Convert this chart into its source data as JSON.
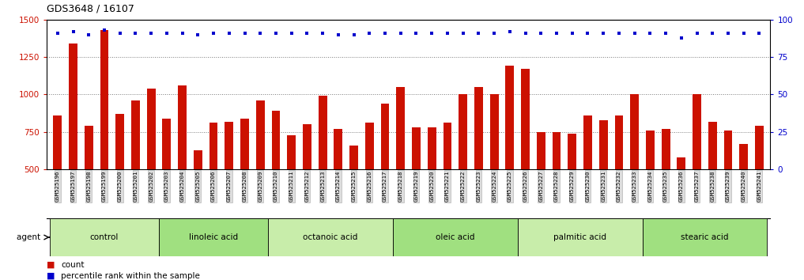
{
  "title": "GDS3648 / 16107",
  "samples": [
    "GSM525196",
    "GSM525197",
    "GSM525198",
    "GSM525199",
    "GSM525200",
    "GSM525201",
    "GSM525202",
    "GSM525203",
    "GSM525204",
    "GSM525205",
    "GSM525206",
    "GSM525207",
    "GSM525208",
    "GSM525209",
    "GSM525210",
    "GSM525211",
    "GSM525212",
    "GSM525213",
    "GSM525214",
    "GSM525215",
    "GSM525216",
    "GSM525217",
    "GSM525218",
    "GSM525219",
    "GSM525220",
    "GSM525221",
    "GSM525222",
    "GSM525223",
    "GSM525224",
    "GSM525225",
    "GSM525226",
    "GSM525227",
    "GSM525228",
    "GSM525229",
    "GSM525230",
    "GSM525231",
    "GSM525232",
    "GSM525233",
    "GSM525234",
    "GSM525235",
    "GSM525236",
    "GSM525237",
    "GSM525238",
    "GSM525239",
    "GSM525240",
    "GSM525241"
  ],
  "counts": [
    860,
    1340,
    790,
    1430,
    870,
    960,
    1040,
    840,
    1060,
    630,
    810,
    820,
    840,
    960,
    890,
    730,
    800,
    990,
    770,
    660,
    810,
    940,
    1050,
    780,
    780,
    810,
    1000,
    1050,
    1000,
    1190,
    1170,
    750,
    750,
    740,
    860,
    830,
    860,
    1000,
    760,
    770,
    580,
    1000,
    820,
    760,
    670,
    790
  ],
  "percentile_ranks": [
    91,
    92,
    90,
    93,
    91,
    91,
    91,
    91,
    91,
    90,
    91,
    91,
    91,
    91,
    91,
    91,
    91,
    91,
    90,
    90,
    91,
    91,
    91,
    91,
    91,
    91,
    91,
    91,
    91,
    92,
    91,
    91,
    91,
    91,
    91,
    91,
    91,
    91,
    91,
    91,
    88,
    91,
    91,
    91,
    91,
    91
  ],
  "groups": [
    {
      "label": "control",
      "start": 0,
      "end": 7
    },
    {
      "label": "linoleic acid",
      "start": 7,
      "end": 14
    },
    {
      "label": "octanoic acid",
      "start": 14,
      "end": 22
    },
    {
      "label": "oleic acid",
      "start": 22,
      "end": 30
    },
    {
      "label": "palmitic acid",
      "start": 30,
      "end": 38
    },
    {
      "label": "stearic acid",
      "start": 38,
      "end": 46
    }
  ],
  "group_colors": [
    "#c8edaa",
    "#a0e080",
    "#c8edaa",
    "#a0e080",
    "#c8edaa",
    "#a0e080"
  ],
  "bar_color": "#cc1100",
  "dot_color": "#0000cc",
  "left_ylim": [
    500,
    1500
  ],
  "left_yticks": [
    500,
    750,
    1000,
    1250,
    1500
  ],
  "right_ylim": [
    0,
    100
  ],
  "right_yticks": [
    0,
    25,
    50,
    75,
    100
  ],
  "grid_color": "#777777",
  "bg_color": "#ffffff",
  "sample_bg": "#dddddd",
  "legend_count_color": "#cc1100",
  "legend_pct_color": "#0000cc"
}
